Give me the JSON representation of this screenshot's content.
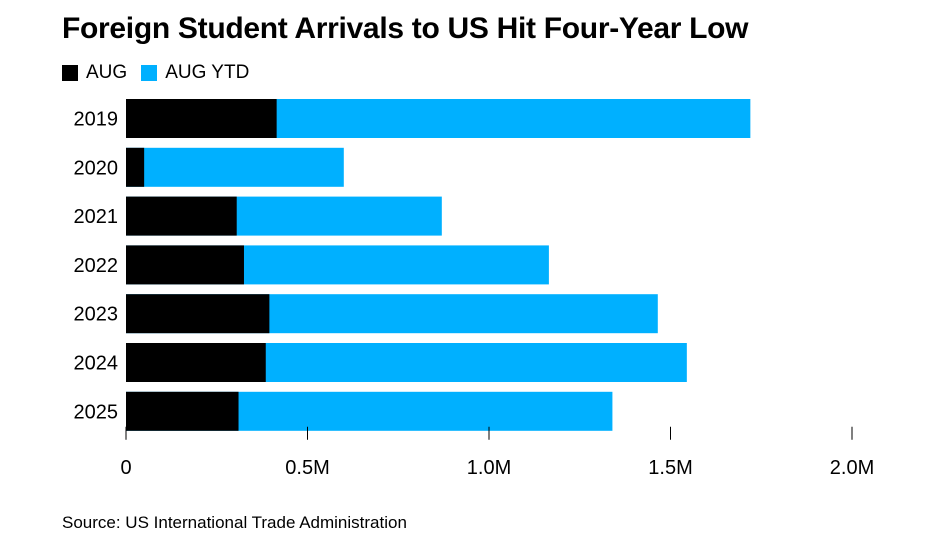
{
  "chart_data": {
    "type": "bar",
    "orientation": "horizontal",
    "stacked": false,
    "title": "Foreign Student Arrivals to US Hit Four-Year Low",
    "categories": [
      "2019",
      "2020",
      "2021",
      "2022",
      "2023",
      "2024",
      "2025"
    ],
    "series": [
      {
        "name": "AUG YTD",
        "color": "#00b0ff",
        "values": [
          1720000,
          600000,
          870000,
          1165000,
          1465000,
          1545000,
          1340000
        ]
      },
      {
        "name": "AUG",
        "color": "#000000",
        "values": [
          415000,
          50000,
          305000,
          325000,
          395000,
          385000,
          310000
        ]
      }
    ],
    "xlim": [
      0,
      2000000
    ],
    "xticks": [
      0,
      500000,
      1000000,
      1500000,
      2000000
    ],
    "xtick_labels": [
      "0",
      "0.5M",
      "1.0M",
      "1.5M",
      "2.0M"
    ],
    "xlabel": "",
    "ylabel": "",
    "grid": false,
    "legend_position": "top-left"
  },
  "legend": [
    {
      "label": "AUG",
      "color": "#000000"
    },
    {
      "label": "AUG YTD",
      "color": "#00b0ff"
    }
  ],
  "source": "Source: US International Trade Administration"
}
